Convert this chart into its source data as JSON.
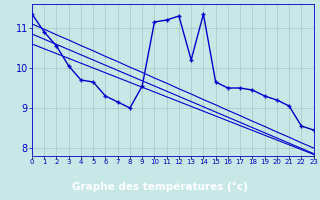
{
  "xlabel": "Graphe des températures (°c)",
  "x_values": [
    0,
    1,
    2,
    3,
    4,
    5,
    6,
    7,
    8,
    9,
    10,
    11,
    12,
    13,
    14,
    15,
    16,
    17,
    18,
    19,
    20,
    21,
    22,
    23
  ],
  "temp_line": [
    11.35,
    10.9,
    10.55,
    10.05,
    9.7,
    9.65,
    9.3,
    9.15,
    9.0,
    9.55,
    11.15,
    11.2,
    11.3,
    10.2,
    11.35,
    9.65,
    9.5,
    9.5,
    9.45,
    9.3,
    9.2,
    9.05,
    8.55,
    8.45
  ],
  "trend_line1": [
    11.1,
    10.97,
    10.83,
    10.7,
    10.56,
    10.43,
    10.29,
    10.16,
    10.02,
    9.89,
    9.75,
    9.62,
    9.48,
    9.35,
    9.21,
    9.08,
    8.94,
    8.81,
    8.67,
    8.54,
    8.4,
    8.27,
    8.13,
    8.0
  ],
  "trend_line2": [
    10.85,
    10.72,
    10.59,
    10.46,
    10.33,
    10.2,
    10.07,
    9.94,
    9.81,
    9.68,
    9.55,
    9.42,
    9.29,
    9.16,
    9.03,
    8.9,
    8.77,
    8.64,
    8.51,
    8.38,
    8.25,
    8.12,
    7.99,
    7.86
  ],
  "trend_line3": [
    10.6,
    10.48,
    10.36,
    10.24,
    10.12,
    10.0,
    9.88,
    9.76,
    9.64,
    9.52,
    9.4,
    9.28,
    9.16,
    9.04,
    8.92,
    8.8,
    8.68,
    8.56,
    8.44,
    8.32,
    8.2,
    8.08,
    7.96,
    7.84
  ],
  "xlim": [
    0,
    23
  ],
  "ylim": [
    7.8,
    11.6
  ],
  "yticks": [
    8,
    9,
    10,
    11
  ],
  "xtick_labels": [
    "0",
    "1",
    "2",
    "3",
    "4",
    "5",
    "6",
    "7",
    "8",
    "9",
    "10",
    "11",
    "12",
    "13",
    "14",
    "15",
    "16",
    "17",
    "18",
    "19",
    "20",
    "21",
    "22",
    "23"
  ],
  "line_color": "#0000cc",
  "bg_color": "#c8e8e8",
  "grid_color": "#a0c8c8",
  "fig_bg": "#c8e8e8",
  "bottom_bar_color": "#0000aa",
  "bottom_bar_text": "#ffffff",
  "ytick_color": "#0000cc",
  "xtick_color": "#0000cc"
}
